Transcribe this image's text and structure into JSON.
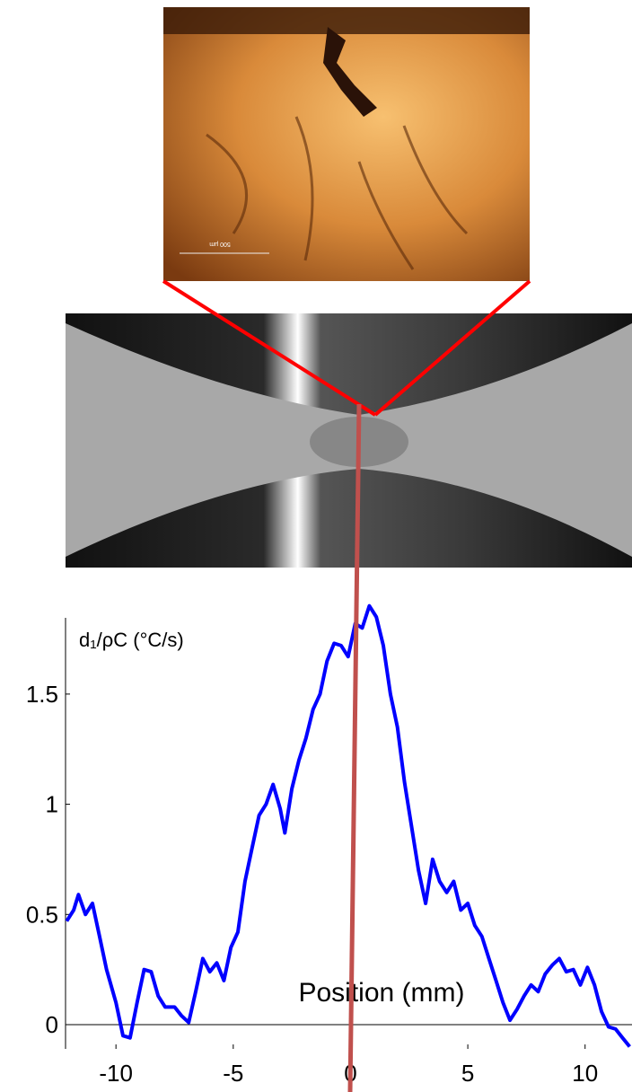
{
  "scale_bar": "500 µm",
  "chart_data": {
    "type": "line",
    "y_label": "d₁/ρC (°C/s)",
    "x_label": "Position (mm)",
    "xlim": [
      -12.15,
      12.0
    ],
    "ylim": [
      -0.11,
      1.96
    ],
    "xticks": [
      -10,
      -5,
      0,
      5,
      10
    ],
    "yticks": [
      0,
      0.5,
      1,
      1.5
    ],
    "series": [
      {
        "color": "#0000ff",
        "x": [
          -12.1,
          -11.8,
          -11.6,
          -11.3,
          -11.0,
          -10.7,
          -10.4,
          -10.0,
          -9.7,
          -9.4,
          -9.1,
          -8.8,
          -8.5,
          -8.2,
          -7.9,
          -7.5,
          -7.2,
          -6.9,
          -6.6,
          -6.3,
          -6.0,
          -5.7,
          -5.4,
          -5.1,
          -4.8,
          -4.5,
          -4.2,
          -3.9,
          -3.6,
          -3.3,
          -3.0,
          -2.8,
          -2.5,
          -2.2,
          -1.9,
          -1.6,
          -1.3,
          -1.0,
          -0.7,
          -0.4,
          -0.1,
          0.2,
          0.5,
          0.8,
          1.1,
          1.4,
          1.7,
          2.0,
          2.3,
          2.6,
          2.9,
          3.2,
          3.5,
          3.8,
          4.1,
          4.4,
          4.7,
          5.0,
          5.3,
          5.6,
          5.9,
          6.2,
          6.5,
          6.8,
          7.1,
          7.4,
          7.7,
          8.0,
          8.3,
          8.6,
          8.9,
          9.2,
          9.5,
          9.8,
          10.1,
          10.4,
          10.7,
          11.0,
          11.3,
          11.6,
          11.9
        ],
        "values": [
          0.47,
          0.52,
          0.59,
          0.5,
          0.55,
          0.4,
          0.25,
          0.1,
          -0.05,
          -0.06,
          0.1,
          0.25,
          0.24,
          0.13,
          0.08,
          0.08,
          0.04,
          0.01,
          0.15,
          0.3,
          0.24,
          0.28,
          0.2,
          0.35,
          0.42,
          0.65,
          0.8,
          0.95,
          1.0,
          1.09,
          0.98,
          0.87,
          1.07,
          1.2,
          1.3,
          1.43,
          1.5,
          1.65,
          1.73,
          1.72,
          1.67,
          1.82,
          1.8,
          1.9,
          1.85,
          1.72,
          1.5,
          1.35,
          1.1,
          0.9,
          0.7,
          0.55,
          0.75,
          0.65,
          0.6,
          0.65,
          0.52,
          0.55,
          0.45,
          0.4,
          0.3,
          0.2,
          0.1,
          0.02,
          0.07,
          0.13,
          0.18,
          0.15,
          0.23,
          0.27,
          0.3,
          0.24,
          0.25,
          0.18,
          0.26,
          0.18,
          0.06,
          -0.01,
          -0.02,
          -0.06,
          -0.1
        ]
      }
    ]
  }
}
